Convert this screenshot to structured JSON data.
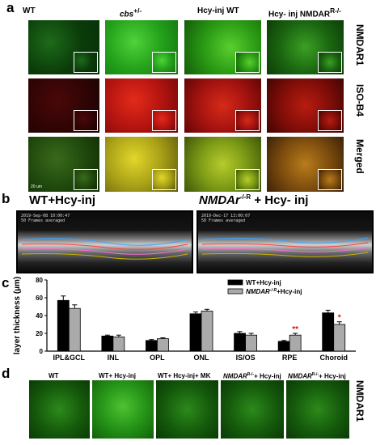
{
  "panel_a": {
    "label": "a",
    "columns": [
      "WT",
      "cbs",
      "Hcy-inj WT",
      "Hcy- inj NMDAR"
    ],
    "column_superscripts": [
      "",
      "+/-",
      "",
      "R-/-"
    ],
    "rows": [
      "NMDAR1",
      "ISO-B4",
      "Merged"
    ],
    "scale_bar": "20 um"
  },
  "panel_b": {
    "label": "b",
    "left_title": "WT+Hcy-inj",
    "right_title_italic": "NMDAr",
    "right_title_sup": "-/-R",
    "right_title_rest": " + Hcy- inj",
    "left_stamp": "2019-Sep-08 10:00:47\n50 Frames averaged",
    "right_stamp": "2019-Dec-17 13:00:07\n50 Frames averaged"
  },
  "panel_c": {
    "label": "c",
    "asterisks": "**",
    "asterisk_single": "*"
  },
  "panel_d": {
    "label": "d",
    "columns": [
      "WT",
      "WT+ Hcy-inj",
      "WT+ Hcy-inj+ MK",
      "NMDAR+ Hcy-inj",
      "NMDAR+ Hcy-inj"
    ],
    "column_italic": [
      "",
      "",
      "",
      "NMDAR",
      "NMDAR"
    ],
    "column_sup": [
      "",
      "",
      "",
      "R-/-",
      "R-/-"
    ],
    "column_rest": [
      "",
      "",
      "",
      "+ Hcy-inj",
      "+ Hcy-inj"
    ],
    "row": "NMDAR1"
  },
  "chart_data": {
    "type": "bar",
    "categories": [
      "IPL&GCL",
      "INL",
      "OPL",
      "ONL",
      "IS/OS",
      "RPE",
      "Choroid"
    ],
    "ylabel": "layer thickness (µm)",
    "ylim": [
      0,
      80
    ],
    "yticks": [
      0,
      20,
      40,
      60,
      80
    ],
    "legend_position": "top-right",
    "series": [
      {
        "name": "WT+Hcy-inj",
        "values": [
          57,
          17,
          12,
          42,
          20,
          11,
          43
        ],
        "errors": [
          5,
          1,
          1,
          2,
          2,
          1,
          3
        ],
        "color": "#000000"
      },
      {
        "name": "NMDAr-/-R+Hcy-inj",
        "values": [
          48,
          16,
          14,
          45,
          18,
          18,
          30
        ],
        "errors": [
          4,
          2,
          1,
          2,
          2,
          2,
          3
        ],
        "color": "#aaaaaa"
      }
    ],
    "legend_labels": [
      {
        "plain": "WT+Hcy-inj",
        "italic": "",
        "sup": "",
        "rest": ""
      },
      {
        "plain": "",
        "italic": "NMDAR",
        "sup": "-/-R",
        "rest": "+Hcy-inj"
      }
    ],
    "significance": [
      {
        "category": "RPE",
        "series": 1,
        "mark": "**"
      },
      {
        "category": "Choroid",
        "series": 1,
        "mark": "*"
      }
    ]
  }
}
